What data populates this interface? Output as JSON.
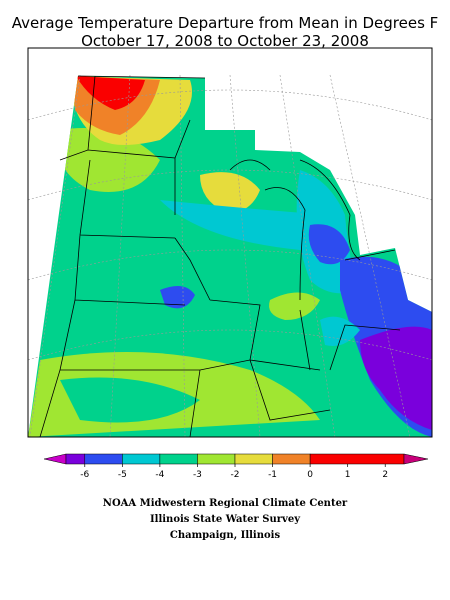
{
  "title": [
    "Average Temperature Departure from Mean in Degrees F",
    "October 17, 2008 to October 23, 2008"
  ],
  "legend": {
    "ticks": [
      -6,
      -5,
      -4,
      -3,
      -2,
      -1,
      0,
      1,
      2
    ],
    "colors": [
      "#c800c8",
      "#7a00dc",
      "#2d4cf0",
      "#00c8d2",
      "#00d28c",
      "#a0e632",
      "#e6dc3c",
      "#f08228",
      "#fa0000",
      "#c8007a"
    ]
  },
  "credits": [
    "NOAA Midwestern Regional Climate Center",
    "Illinois State Water Survey",
    "Champaign, Illinois"
  ]
}
